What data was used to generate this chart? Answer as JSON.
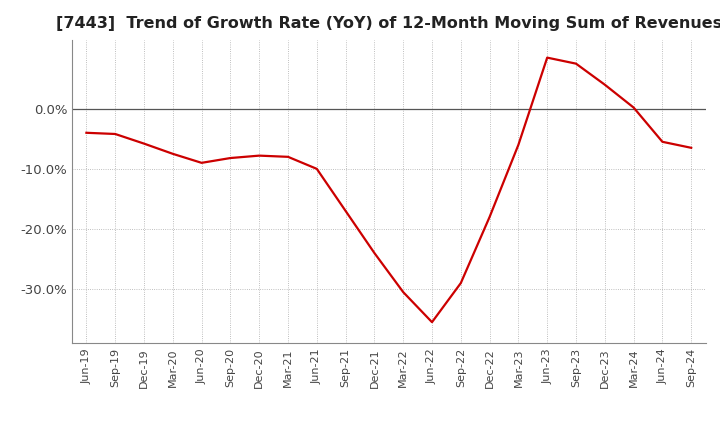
{
  "title": "[7443]  Trend of Growth Rate (YoY) of 12-Month Moving Sum of Revenues",
  "title_fontsize": 11.5,
  "line_color": "#cc0000",
  "background_color": "#ffffff",
  "grid_color_dotted": "#aaaaaa",
  "grid_color_solid": "#555555",
  "ylim": [
    -0.39,
    0.115
  ],
  "yticks": [
    0.0,
    -0.1,
    -0.2,
    -0.3
  ],
  "ytick_labels": [
    "0.0%",
    "-10.0%",
    "-20.0%",
    "-30.0%"
  ],
  "x_labels": [
    "Jun-19",
    "Sep-19",
    "Dec-19",
    "Mar-20",
    "Jun-20",
    "Sep-20",
    "Dec-20",
    "Mar-21",
    "Jun-21",
    "Sep-21",
    "Dec-21",
    "Mar-22",
    "Jun-22",
    "Sep-22",
    "Dec-22",
    "Mar-23",
    "Jun-23",
    "Sep-23",
    "Dec-23",
    "Mar-24",
    "Jun-24",
    "Sep-24"
  ],
  "values": [
    -0.04,
    -0.042,
    -0.058,
    -0.075,
    -0.09,
    -0.082,
    -0.078,
    -0.08,
    -0.1,
    -0.17,
    -0.24,
    -0.305,
    -0.355,
    -0.29,
    -0.18,
    -0.06,
    0.085,
    0.075,
    0.04,
    0.002,
    -0.055,
    -0.065
  ]
}
